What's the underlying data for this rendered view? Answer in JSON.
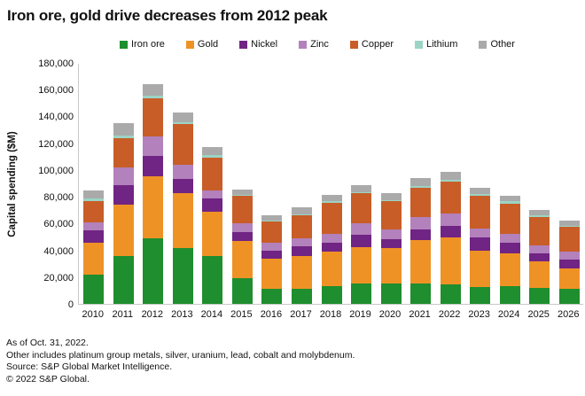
{
  "title": "Iron ore, gold drive decreases from 2012 peak",
  "chart_data": {
    "type": "bar",
    "stacked": true,
    "title": "Iron ore, gold drive decreases from 2012 peak",
    "xlabel": "",
    "ylabel": "Capital spending ($M)",
    "ylim": [
      0,
      180000
    ],
    "yticks": [
      0,
      20000,
      40000,
      60000,
      80000,
      100000,
      120000,
      140000,
      160000,
      180000
    ],
    "grid": false,
    "legend_position": "top",
    "categories": [
      "2010",
      "2011",
      "2012",
      "2013",
      "2014",
      "2015",
      "2016",
      "2017",
      "2018",
      "2019",
      "2020",
      "2021",
      "2022",
      "2023",
      "2024",
      "2025",
      "2026"
    ],
    "series": [
      {
        "name": "Iron ore",
        "color": "#1E8E2E",
        "values": [
          22000,
          36000,
          49000,
          42000,
          35500,
          19000,
          11000,
          11000,
          13000,
          15000,
          15000,
          15000,
          14500,
          12500,
          13000,
          12000,
          11000
        ]
      },
      {
        "name": "Gold",
        "color": "#EF9226",
        "values": [
          24000,
          38000,
          46000,
          41000,
          33500,
          28000,
          22500,
          25000,
          26000,
          27500,
          27000,
          32500,
          35000,
          27000,
          25000,
          19500,
          15500
        ]
      },
      {
        "name": "Nickel",
        "color": "#702483",
        "values": [
          9000,
          15000,
          15500,
          10500,
          9500,
          6500,
          6500,
          7000,
          7000,
          9000,
          6500,
          8000,
          9000,
          10000,
          7500,
          6000,
          6500
        ]
      },
      {
        "name": "Zinc",
        "color": "#B381BB",
        "values": [
          6000,
          13000,
          14500,
          10500,
          6500,
          6500,
          6000,
          6000,
          6000,
          8500,
          7000,
          9500,
          9000,
          7000,
          6500,
          6500,
          6000
        ]
      },
      {
        "name": "Copper",
        "color": "#C85D27",
        "values": [
          16000,
          21500,
          28500,
          30500,
          24500,
          20500,
          15500,
          17000,
          23500,
          22500,
          21000,
          22000,
          24000,
          24000,
          23000,
          21000,
          18500
        ]
      },
      {
        "name": "Lithium",
        "color": "#9BD4C5",
        "values": [
          1500,
          2000,
          2000,
          1500,
          1500,
          1000,
          500,
          1000,
          1000,
          1000,
          1000,
          1000,
          1500,
          1500,
          1500,
          1000,
          500
        ]
      },
      {
        "name": "Other",
        "color": "#AAAAAA",
        "values": [
          6500,
          9500,
          8500,
          7000,
          6500,
          4000,
          4000,
          5500,
          5000,
          5500,
          5000,
          6000,
          5500,
          5000,
          4500,
          4500,
          4500
        ]
      }
    ]
  },
  "footnotes": [
    "As of Oct. 31, 2022.",
    "Other includes platinum group metals, silver, uranium, lead, cobalt and molybdenum.",
    "Source: S&P Global Market Intelligence.",
    "© 2022 S&P Global."
  ]
}
